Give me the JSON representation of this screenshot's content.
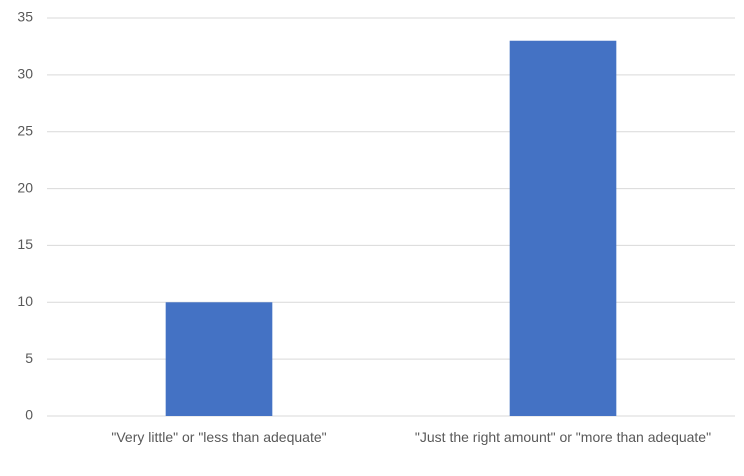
{
  "chart_data": {
    "type": "bar",
    "categories": [
      "\"Very little\" or \"less than adequate\"",
      "\"Just the right amount\" or \"more than adequate\""
    ],
    "values": [
      10,
      33
    ],
    "color": "#4472c4",
    "ylim": [
      0,
      35
    ],
    "yticks": [
      0,
      5,
      10,
      15,
      20,
      25,
      30,
      35
    ],
    "grid": true
  }
}
